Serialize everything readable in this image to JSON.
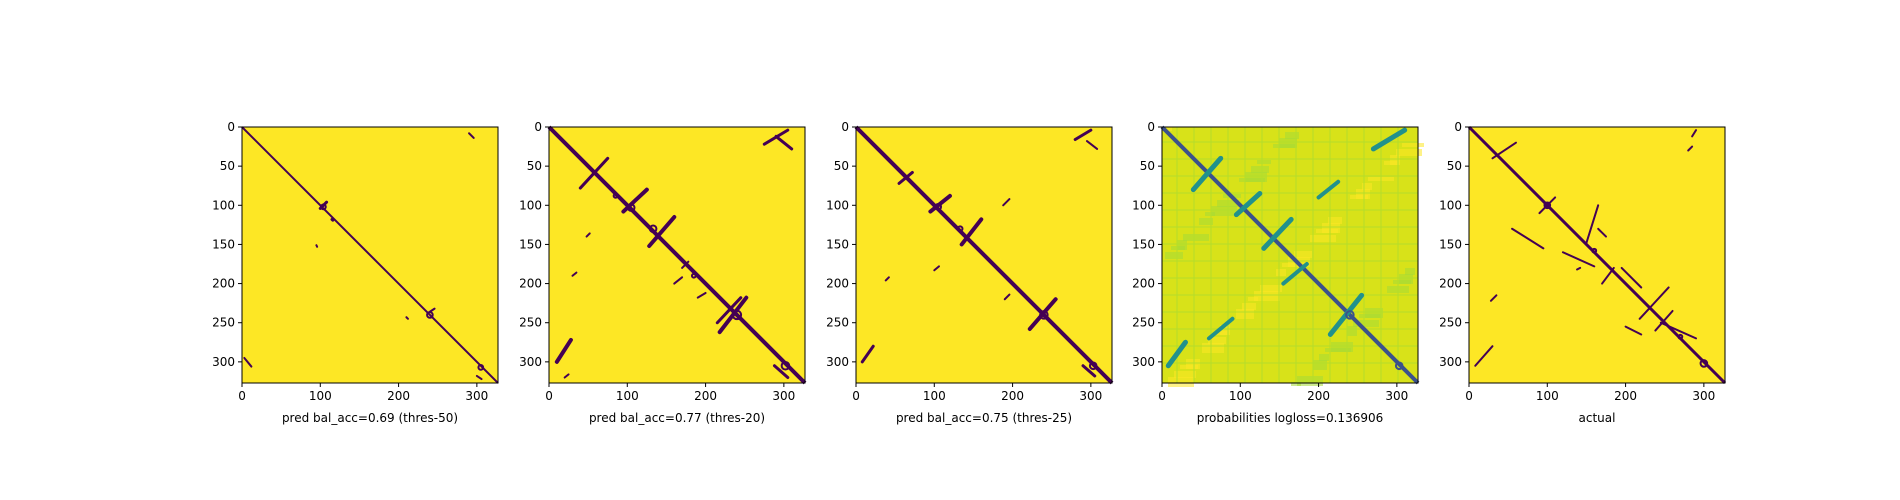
{
  "chart_data": [
    {
      "type": "heatmap",
      "title": "",
      "xlabel": "pred bal_acc=0.69 (thres-50)",
      "ylabel": "",
      "size": 327,
      "xlim": [
        0,
        327
      ],
      "ylim": [
        327,
        0
      ],
      "xticks": [
        0,
        100,
        200,
        300
      ],
      "yticks": [
        0,
        50,
        100,
        150,
        200,
        250,
        300
      ],
      "colormap": "viridis",
      "colors": {
        "background": "#fde725",
        "contact": "#440154"
      },
      "diagonal_width": 2,
      "offdiag_segments": [
        [
          100,
          104,
          108,
          96,
          3
        ],
        [
          240,
          236,
          246,
          232,
          2
        ],
        [
          3,
          295,
          12,
          306,
          2
        ],
        [
          290,
          8,
          296,
          14,
          2
        ],
        [
          115,
          118,
          116,
          119,
          3
        ],
        [
          95,
          151,
          96,
          153,
          2
        ],
        [
          210,
          243,
          212,
          245,
          2
        ],
        [
          300,
          318,
          306,
          322,
          2
        ]
      ],
      "blobs": [
        [
          104,
          102,
          5,
          2
        ],
        [
          240,
          240,
          6,
          2
        ],
        [
          305,
          307,
          5,
          2
        ]
      ]
    },
    {
      "type": "heatmap",
      "title": "",
      "xlabel": "pred bal_acc=0.77 (thres-20)",
      "ylabel": "",
      "size": 327,
      "xlim": [
        0,
        327
      ],
      "ylim": [
        327,
        0
      ],
      "xticks": [
        0,
        100,
        200,
        300
      ],
      "yticks": [
        0,
        50,
        100,
        150,
        200,
        250,
        300
      ],
      "colormap": "viridis",
      "colors": {
        "background": "#fde725",
        "contact": "#440154"
      },
      "diagonal_width": 4,
      "offdiag_segments": [
        [
          40,
          78,
          75,
          40,
          3
        ],
        [
          95,
          108,
          125,
          80,
          4
        ],
        [
          128,
          152,
          160,
          115,
          4
        ],
        [
          10,
          300,
          28,
          272,
          4
        ],
        [
          275,
          22,
          305,
          4,
          3
        ],
        [
          290,
          12,
          310,
          28,
          3
        ],
        [
          218,
          262,
          252,
          218,
          4
        ],
        [
          215,
          250,
          245,
          218,
          3
        ],
        [
          48,
          140,
          52,
          136,
          2
        ],
        [
          170,
          180,
          178,
          172,
          2
        ],
        [
          160,
          200,
          170,
          192,
          2
        ],
        [
          190,
          218,
          200,
          212,
          2
        ],
        [
          288,
          305,
          305,
          320,
          3
        ],
        [
          110,
          93,
          115,
          90,
          2
        ],
        [
          30,
          190,
          35,
          186,
          2
        ],
        [
          20,
          320,
          25,
          316,
          2
        ]
      ],
      "blobs": [
        [
          105,
          103,
          7,
          2
        ],
        [
          133,
          130,
          7,
          2
        ],
        [
          240,
          240,
          9,
          2
        ],
        [
          302,
          305,
          8,
          2
        ],
        [
          85,
          88,
          4,
          2
        ],
        [
          185,
          190,
          4,
          2
        ]
      ]
    },
    {
      "type": "heatmap",
      "title": "",
      "xlabel": "pred bal_acc=0.75 (thres-25)",
      "ylabel": "",
      "size": 327,
      "xlim": [
        0,
        327
      ],
      "ylim": [
        327,
        0
      ],
      "xticks": [
        0,
        100,
        200,
        300
      ],
      "yticks": [
        0,
        50,
        100,
        150,
        200,
        250,
        300
      ],
      "colormap": "viridis",
      "colors": {
        "background": "#fde725",
        "contact": "#440154"
      },
      "diagonal_width": 4,
      "offdiag_segments": [
        [
          55,
          72,
          72,
          58,
          3
        ],
        [
          95,
          108,
          120,
          88,
          4
        ],
        [
          135,
          150,
          160,
          118,
          4
        ],
        [
          8,
          300,
          22,
          280,
          3
        ],
        [
          280,
          16,
          300,
          4,
          3
        ],
        [
          295,
          18,
          308,
          28,
          2
        ],
        [
          222,
          258,
          255,
          220,
          4
        ],
        [
          188,
          100,
          196,
          92,
          2
        ],
        [
          100,
          183,
          106,
          178,
          2
        ],
        [
          190,
          220,
          196,
          214,
          2
        ],
        [
          290,
          305,
          305,
          318,
          3
        ],
        [
          38,
          196,
          42,
          192,
          2
        ]
      ],
      "blobs": [
        [
          105,
          102,
          6,
          2
        ],
        [
          133,
          130,
          5,
          2
        ],
        [
          240,
          240,
          8,
          2
        ],
        [
          303,
          305,
          7,
          2
        ]
      ]
    },
    {
      "type": "heatmap",
      "title": "",
      "xlabel": "probabilities logloss=0.136906",
      "ylabel": "",
      "size": 327,
      "xlim": [
        0,
        327
      ],
      "ylim": [
        327,
        0
      ],
      "xticks": [
        0,
        100,
        200,
        300
      ],
      "yticks": [
        0,
        50,
        100,
        150,
        200,
        250,
        300
      ],
      "colormap": "viridis",
      "colors": {
        "background": "#d8e219",
        "contact": "#3b518b"
      },
      "diagonal_width": 4,
      "offdiag_segments": [
        [
          40,
          80,
          75,
          40,
          5
        ],
        [
          95,
          112,
          125,
          85,
          5
        ],
        [
          130,
          155,
          165,
          118,
          5
        ],
        [
          8,
          305,
          30,
          275,
          5
        ],
        [
          270,
          28,
          310,
          4,
          5
        ],
        [
          215,
          265,
          255,
          215,
          5
        ],
        [
          155,
          200,
          185,
          175,
          4
        ],
        [
          60,
          270,
          90,
          245,
          4
        ],
        [
          200,
          90,
          225,
          70,
          4
        ]
      ],
      "blobs": [
        [
          240,
          240,
          8,
          2
        ],
        [
          303,
          305,
          7,
          2
        ]
      ]
    },
    {
      "type": "heatmap",
      "title": "",
      "xlabel": "actual",
      "ylabel": "",
      "size": 327,
      "xlim": [
        0,
        327
      ],
      "ylim": [
        327,
        0
      ],
      "xticks": [
        0,
        100,
        200,
        300
      ],
      "yticks": [
        0,
        50,
        100,
        150,
        200,
        250,
        300
      ],
      "colormap": "viridis",
      "colors": {
        "background": "#fde725",
        "contact": "#440154"
      },
      "diagonal_width": 3,
      "offdiag_segments": [
        [
          8,
          305,
          30,
          280,
          2
        ],
        [
          285,
          12,
          290,
          4,
          2
        ],
        [
          280,
          30,
          285,
          25,
          2
        ],
        [
          55,
          130,
          95,
          155,
          2
        ],
        [
          150,
          148,
          165,
          100,
          2
        ],
        [
          165,
          130,
          175,
          140,
          2
        ],
        [
          170,
          200,
          185,
          180,
          2
        ],
        [
          195,
          180,
          220,
          205,
          2
        ],
        [
          218,
          245,
          255,
          205,
          2
        ],
        [
          200,
          255,
          220,
          265,
          2
        ],
        [
          238,
          260,
          260,
          235,
          2
        ],
        [
          245,
          250,
          290,
          270,
          2
        ],
        [
          120,
          160,
          160,
          178,
          2
        ],
        [
          30,
          40,
          60,
          20,
          2
        ],
        [
          90,
          110,
          110,
          90,
          2
        ],
        [
          28,
          222,
          35,
          215,
          2
        ],
        [
          138,
          182,
          142,
          180,
          2
        ]
      ],
      "blobs": [
        [
          100,
          100,
          6,
          2
        ],
        [
          300,
          302,
          7,
          2
        ],
        [
          270,
          268,
          4,
          2
        ],
        [
          160,
          158,
          4,
          2
        ]
      ]
    }
  ]
}
